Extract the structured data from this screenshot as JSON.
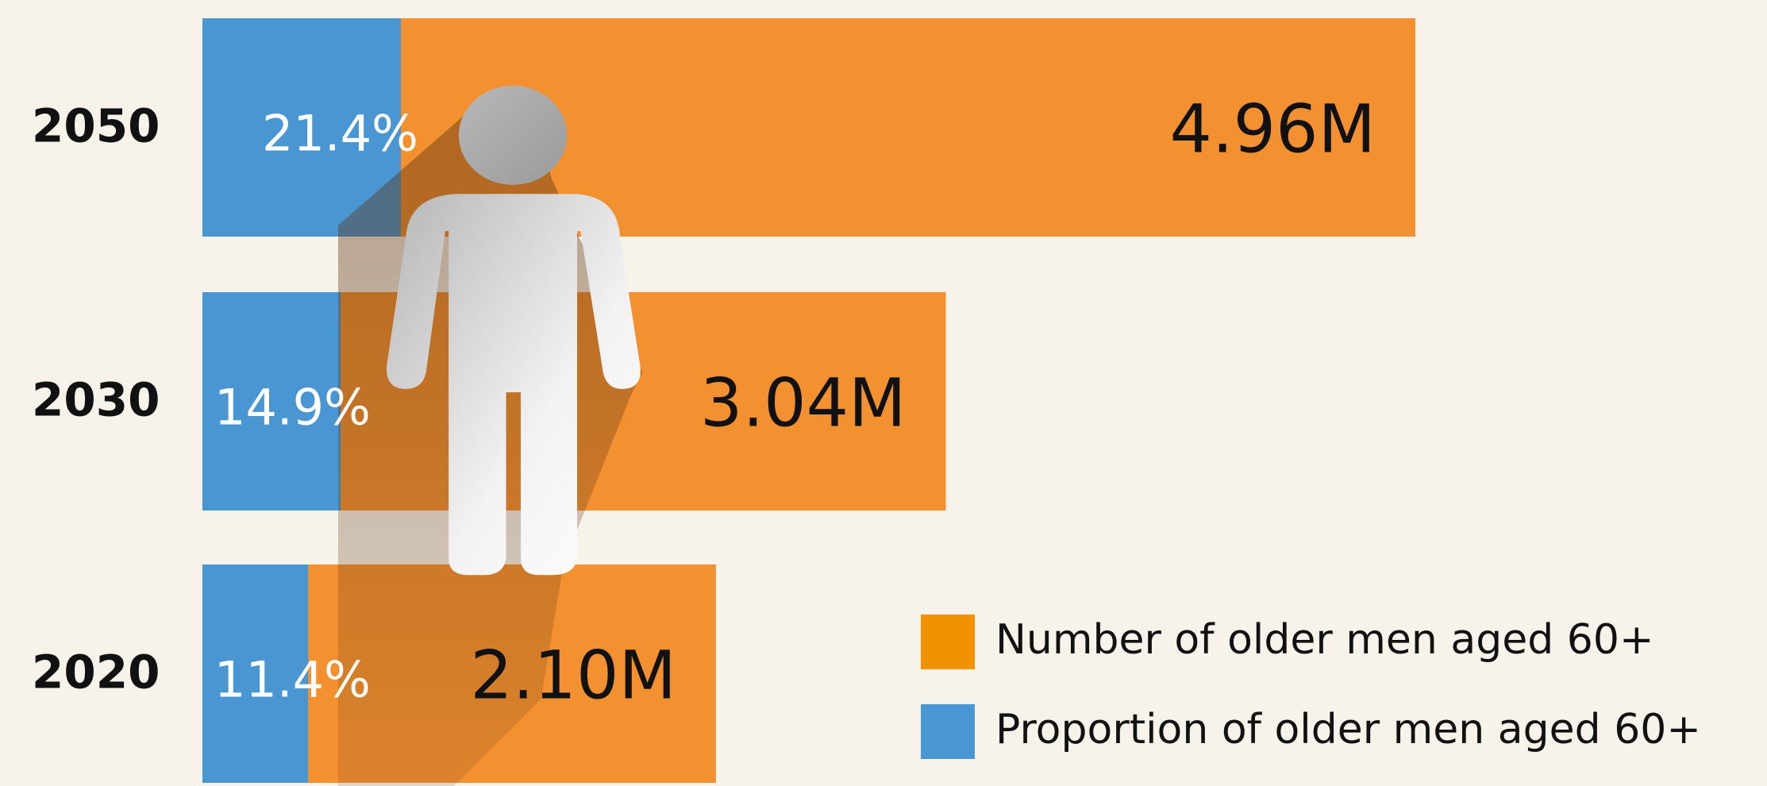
{
  "chart_data": {
    "type": "bar",
    "categories": [
      "2050",
      "2030",
      "2020"
    ],
    "series": [
      {
        "name": "Number of older men aged 60+",
        "color": "#f39131",
        "legend_color": "#f39200",
        "values": [
          4.96,
          3.04,
          2.1
        ],
        "value_labels": [
          "4.96M",
          "3.04M",
          "2.10M"
        ]
      },
      {
        "name": "Proportion of older men aged 60+",
        "color": "#4a96d2",
        "legend_color": "#4a96d2",
        "values": [
          21.4,
          14.9,
          11.4
        ],
        "value_labels": [
          "21.4%",
          "14.9%",
          "11.4%"
        ]
      }
    ]
  }
}
